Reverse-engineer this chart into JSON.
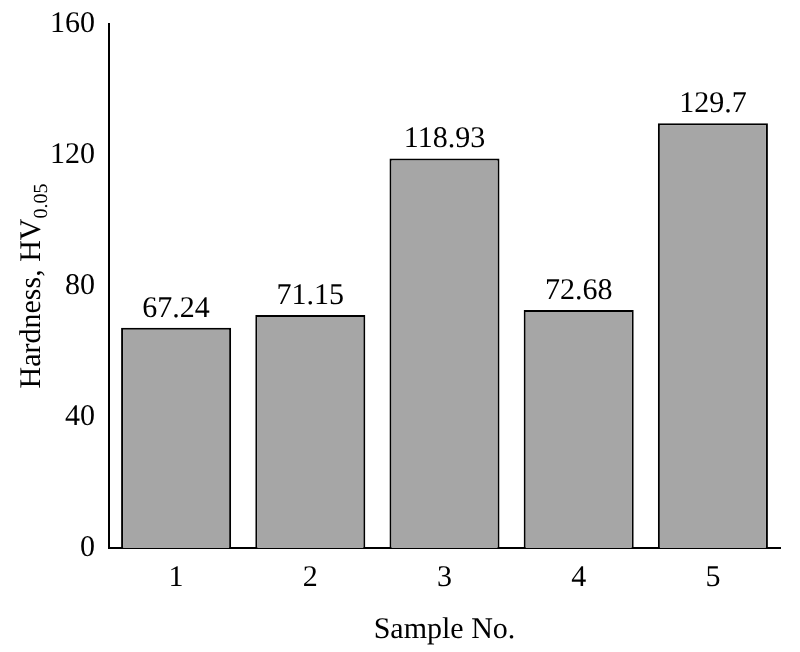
{
  "chart_data": {
    "type": "bar",
    "xlabel": "Sample No.",
    "ylabel": "Hardness, HV$_{0.05}$",
    "categories": [
      "1",
      "2",
      "3",
      "4",
      "5"
    ],
    "values": [
      67.24,
      71.15,
      118.93,
      72.68,
      129.7
    ],
    "color": "#a6a6a6",
    "ylim": [
      0,
      160
    ],
    "yticks": [
      0,
      40,
      80,
      120,
      160
    ],
    "data_labels": true,
    "grid": false,
    "legend": false
  }
}
